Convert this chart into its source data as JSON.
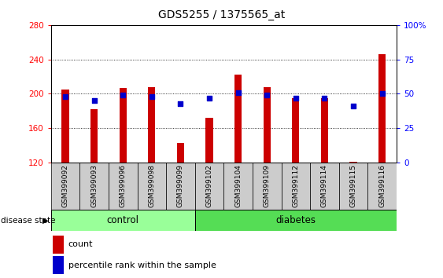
{
  "title": "GDS5255 / 1375565_at",
  "samples": [
    "GSM399092",
    "GSM399093",
    "GSM399096",
    "GSM399098",
    "GSM399099",
    "GSM399102",
    "GSM399104",
    "GSM399109",
    "GSM399112",
    "GSM399114",
    "GSM399115",
    "GSM399116"
  ],
  "counts": [
    205,
    182,
    207,
    208,
    143,
    172,
    222,
    208,
    195,
    195,
    121,
    246
  ],
  "percentiles": [
    48,
    45,
    49,
    48,
    43,
    47,
    51,
    49,
    47,
    47,
    41,
    50
  ],
  "ymin": 120,
  "ymax": 280,
  "yticks": [
    120,
    160,
    200,
    240,
    280
  ],
  "y2min": 0,
  "y2max": 100,
  "y2ticks": [
    0,
    25,
    50,
    75,
    100
  ],
  "bar_color": "#cc0000",
  "dot_color": "#0000cc",
  "n_control": 5,
  "control_label": "control",
  "diabetes_label": "diabetes",
  "control_color": "#99ff99",
  "diabetes_color": "#55dd55",
  "tick_bg_color": "#cccccc",
  "legend_count": "count",
  "legend_percentile": "percentile rank within the sample",
  "disease_state_label": "disease state",
  "bar_width": 0.25,
  "dot_size": 18
}
